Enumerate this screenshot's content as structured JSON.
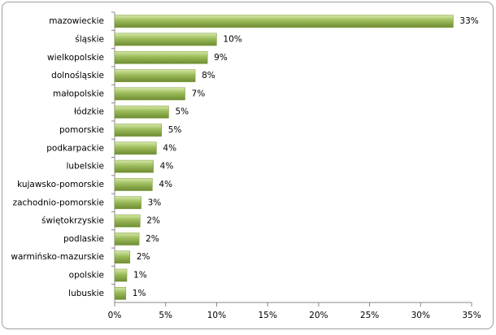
{
  "chart_data": {
    "type": "bar",
    "orientation": "horizontal",
    "categories": [
      "mazowieckie",
      "śląskie",
      "wielkopolskie",
      "dolnośląskie",
      "małopolskie",
      "łódzkie",
      "pomorskie",
      "podkarpackie",
      "lubelskie",
      "kujawsko-pomorskie",
      "zachodnio-pomorskie",
      "świętokrzyskie",
      "podlaskie",
      "warmińsko-mazurskie",
      "opolskie",
      "lubuskie"
    ],
    "values": [
      33.2,
      10.0,
      9.1,
      7.9,
      6.9,
      5.3,
      4.6,
      4.1,
      3.8,
      3.7,
      2.6,
      2.5,
      2.4,
      1.5,
      1.2,
      1.1
    ],
    "value_labels": [
      "33%",
      "10%",
      "9%",
      "8%",
      "7%",
      "5%",
      "5%",
      "4%",
      "4%",
      "4%",
      "3%",
      "2%",
      "2%",
      "2%",
      "1%",
      "1%"
    ],
    "color": "#9bbb59",
    "xlim": [
      0,
      35
    ],
    "xticks": [
      {
        "value": 0,
        "label": "0%"
      },
      {
        "value": 5,
        "label": "5%"
      },
      {
        "value": 10,
        "label": "10%"
      },
      {
        "value": 15,
        "label": "15%"
      },
      {
        "value": 20,
        "label": "20%"
      },
      {
        "value": 25,
        "label": "25%"
      },
      {
        "value": 30,
        "label": "30%"
      },
      {
        "value": 35,
        "label": "35%"
      }
    ],
    "grid": false
  }
}
